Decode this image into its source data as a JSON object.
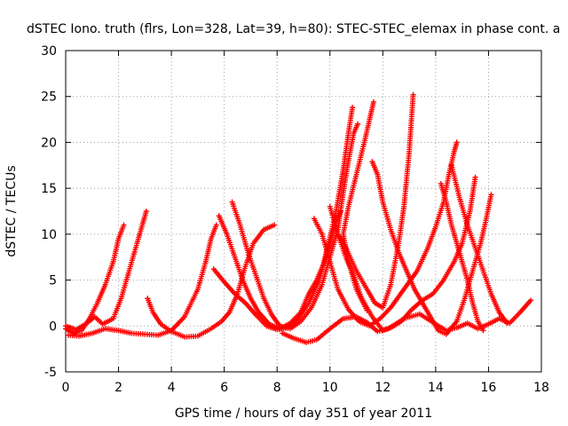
{
  "chart_data": {
    "type": "scatter",
    "title": "dSTEC Iono. truth (flrs, Lon=328, Lat=39, h=80): STEC-STEC_elemax in phase cont. a",
    "xlabel": "GPS time / hours of day 351 of year 2011",
    "ylabel": "dSTEC  / TECUs",
    "xlim": [
      0,
      18
    ],
    "ylim": [
      -5,
      30
    ],
    "xticks": [
      0,
      2,
      4,
      6,
      8,
      10,
      12,
      14,
      16,
      18
    ],
    "yticks": [
      -5,
      0,
      5,
      10,
      15,
      20,
      25,
      30
    ],
    "grid": true,
    "marker": "+",
    "color": "#ff0000",
    "series": [
      {
        "points": [
          [
            0.0,
            -0.3
          ],
          [
            0.3,
            -0.8
          ],
          [
            0.6,
            -0.5
          ],
          [
            0.9,
            0.8
          ],
          [
            1.2,
            2.5
          ],
          [
            1.5,
            4.5
          ],
          [
            1.8,
            7.0
          ],
          [
            2.0,
            9.5
          ],
          [
            2.2,
            11.0
          ]
        ]
      },
      {
        "points": [
          [
            0.0,
            0.0
          ],
          [
            0.4,
            -0.4
          ],
          [
            0.8,
            0.3
          ],
          [
            1.1,
            1.0
          ],
          [
            1.4,
            0.2
          ],
          [
            1.8,
            0.8
          ],
          [
            2.1,
            3.0
          ],
          [
            2.4,
            6.0
          ],
          [
            2.7,
            9.0
          ],
          [
            2.9,
            11.0
          ],
          [
            3.05,
            12.5
          ]
        ]
      },
      {
        "points": [
          [
            0.1,
            -1.0
          ],
          [
            0.5,
            -1.1
          ],
          [
            1.0,
            -0.8
          ],
          [
            1.5,
            -0.3
          ],
          [
            2.0,
            -0.5
          ],
          [
            2.5,
            -0.8
          ],
          [
            3.0,
            -0.9
          ],
          [
            3.5,
            -1.0
          ],
          [
            4.0,
            -0.5
          ],
          [
            4.5,
            1.0
          ],
          [
            5.0,
            4.0
          ],
          [
            5.3,
            7.0
          ],
          [
            5.5,
            9.5
          ],
          [
            5.7,
            11.0
          ]
        ]
      },
      {
        "points": [
          [
            3.1,
            3.0
          ],
          [
            3.3,
            1.5
          ],
          [
            3.6,
            0.2
          ],
          [
            4.0,
            -0.6
          ],
          [
            4.5,
            -1.2
          ],
          [
            5.0,
            -1.1
          ],
          [
            5.5,
            -0.3
          ],
          [
            5.9,
            0.5
          ],
          [
            6.2,
            1.5
          ],
          [
            6.5,
            3.5
          ],
          [
            6.8,
            6.5
          ],
          [
            7.1,
            9.0
          ],
          [
            7.5,
            10.5
          ],
          [
            7.9,
            11.0
          ]
        ]
      },
      {
        "points": [
          [
            5.8,
            12.0
          ],
          [
            6.1,
            10.0
          ],
          [
            6.4,
            7.5
          ],
          [
            6.7,
            5.0
          ],
          [
            7.0,
            3.0
          ],
          [
            7.3,
            1.5
          ],
          [
            7.7,
            0.2
          ],
          [
            8.1,
            -0.3
          ],
          [
            8.5,
            0.3
          ],
          [
            8.9,
            1.5
          ],
          [
            9.2,
            3.5
          ],
          [
            9.5,
            5.0
          ],
          [
            9.8,
            7.0
          ],
          [
            10.0,
            9.0
          ],
          [
            10.2,
            11.0
          ],
          [
            10.4,
            12.5
          ]
        ]
      },
      {
        "points": [
          [
            6.3,
            13.5
          ],
          [
            6.6,
            11.0
          ],
          [
            6.9,
            8.0
          ],
          [
            7.2,
            5.5
          ],
          [
            7.5,
            3.0
          ],
          [
            7.8,
            1.2
          ],
          [
            8.1,
            0.0
          ],
          [
            8.5,
            -0.3
          ],
          [
            8.9,
            0.5
          ],
          [
            9.3,
            2.0
          ],
          [
            9.7,
            4.5
          ],
          [
            10.0,
            7.5
          ],
          [
            10.3,
            10.5
          ],
          [
            10.5,
            14.5
          ],
          [
            10.7,
            18.0
          ],
          [
            10.9,
            21.0
          ],
          [
            11.05,
            22.0
          ]
        ]
      },
      {
        "points": [
          [
            5.6,
            6.2
          ],
          [
            6.0,
            4.8
          ],
          [
            6.4,
            3.5
          ],
          [
            6.8,
            2.5
          ],
          [
            7.2,
            1.2
          ],
          [
            7.6,
            0.0
          ],
          [
            8.0,
            -0.4
          ],
          [
            8.4,
            -0.2
          ],
          [
            8.8,
            0.8
          ],
          [
            9.2,
            2.5
          ],
          [
            9.6,
            5.0
          ],
          [
            9.9,
            8.5
          ],
          [
            10.2,
            12.0
          ],
          [
            10.5,
            17.0
          ],
          [
            10.7,
            21.0
          ],
          [
            10.85,
            23.8
          ]
        ]
      },
      {
        "points": [
          [
            8.2,
            -0.8
          ],
          [
            8.6,
            -1.3
          ],
          [
            9.1,
            -1.8
          ],
          [
            9.5,
            -1.5
          ],
          [
            10.0,
            -0.3
          ],
          [
            10.5,
            0.8
          ],
          [
            11.0,
            1.0
          ],
          [
            11.4,
            0.4
          ],
          [
            11.8,
            -0.6
          ],
          [
            12.2,
            -0.3
          ],
          [
            12.8,
            0.8
          ],
          [
            13.4,
            1.3
          ],
          [
            14.0,
            0.2
          ],
          [
            14.4,
            -0.5
          ],
          [
            14.8,
            -0.2
          ],
          [
            15.2,
            0.3
          ],
          [
            15.6,
            -0.3
          ],
          [
            16.0,
            0.2
          ],
          [
            16.4,
            0.8
          ],
          [
            16.8,
            0.3
          ],
          [
            17.2,
            1.5
          ],
          [
            17.6,
            2.8
          ]
        ]
      },
      {
        "points": [
          [
            9.4,
            11.7
          ],
          [
            9.7,
            10.0
          ],
          [
            10.0,
            7.0
          ],
          [
            10.3,
            4.0
          ],
          [
            10.7,
            1.8
          ],
          [
            11.1,
            0.5
          ],
          [
            11.5,
            0.0
          ],
          [
            11.9,
            0.8
          ],
          [
            12.3,
            2.0
          ],
          [
            12.8,
            4.0
          ],
          [
            13.3,
            6.0
          ],
          [
            13.7,
            8.5
          ],
          [
            14.0,
            10.8
          ],
          [
            14.3,
            13.5
          ],
          [
            14.5,
            16.5
          ],
          [
            14.7,
            19.0
          ],
          [
            14.8,
            20.0
          ]
        ]
      },
      {
        "points": [
          [
            10.0,
            13.0
          ],
          [
            10.3,
            10.0
          ],
          [
            10.6,
            7.5
          ],
          [
            10.9,
            5.5
          ],
          [
            11.2,
            3.0
          ],
          [
            11.6,
            1.0
          ],
          [
            12.0,
            -0.5
          ],
          [
            12.3,
            -0.2
          ],
          [
            12.7,
            0.5
          ],
          [
            13.1,
            1.8
          ],
          [
            13.5,
            2.8
          ],
          [
            13.9,
            3.5
          ],
          [
            14.3,
            5.0
          ],
          [
            14.7,
            7.0
          ],
          [
            15.0,
            9.0
          ],
          [
            15.3,
            12.5
          ],
          [
            15.5,
            16.2
          ]
        ]
      },
      {
        "points": [
          [
            10.3,
            10.0
          ],
          [
            10.6,
            8.5
          ],
          [
            11.0,
            6.0
          ],
          [
            11.4,
            4.0
          ],
          [
            11.7,
            2.5
          ],
          [
            12.0,
            2.0
          ],
          [
            12.3,
            4.5
          ],
          [
            12.6,
            9.0
          ],
          [
            12.8,
            13.0
          ],
          [
            13.0,
            19.0
          ],
          [
            13.15,
            25.2
          ]
        ]
      },
      {
        "points": [
          [
            11.4,
            1.7
          ],
          [
            11.0,
            4.0
          ],
          [
            10.7,
            7.0
          ],
          [
            10.5,
            10.0
          ],
          [
            10.7,
            13.0
          ],
          [
            11.0,
            16.5
          ],
          [
            11.3,
            20.0
          ],
          [
            11.5,
            22.5
          ],
          [
            11.65,
            24.4
          ]
        ]
      },
      {
        "points": [
          [
            11.6,
            17.9
          ],
          [
            11.8,
            16.5
          ],
          [
            12.0,
            13.5
          ],
          [
            12.3,
            10.5
          ],
          [
            12.6,
            8.0
          ],
          [
            12.9,
            6.0
          ],
          [
            13.2,
            4.0
          ],
          [
            13.5,
            2.5
          ],
          [
            13.8,
            1.0
          ],
          [
            14.1,
            -0.5
          ],
          [
            14.4,
            -0.9
          ],
          [
            14.8,
            0.5
          ],
          [
            15.1,
            3.0
          ],
          [
            15.4,
            6.0
          ],
          [
            15.7,
            9.0
          ],
          [
            15.9,
            11.5
          ],
          [
            16.1,
            14.3
          ]
        ]
      },
      {
        "points": [
          [
            14.2,
            15.5
          ],
          [
            14.4,
            13.5
          ],
          [
            14.6,
            11.0
          ],
          [
            14.8,
            9.0
          ],
          [
            15.0,
            7.0
          ],
          [
            15.2,
            5.0
          ],
          [
            15.4,
            2.5
          ],
          [
            15.6,
            0.5
          ],
          [
            15.8,
            -0.5
          ]
        ]
      },
      {
        "points": [
          [
            14.6,
            17.5
          ],
          [
            14.9,
            14.0
          ],
          [
            15.2,
            11.0
          ],
          [
            15.5,
            8.5
          ],
          [
            15.8,
            6.0
          ],
          [
            16.1,
            3.5
          ],
          [
            16.4,
            1.5
          ],
          [
            16.7,
            0.3
          ]
        ]
      }
    ]
  }
}
